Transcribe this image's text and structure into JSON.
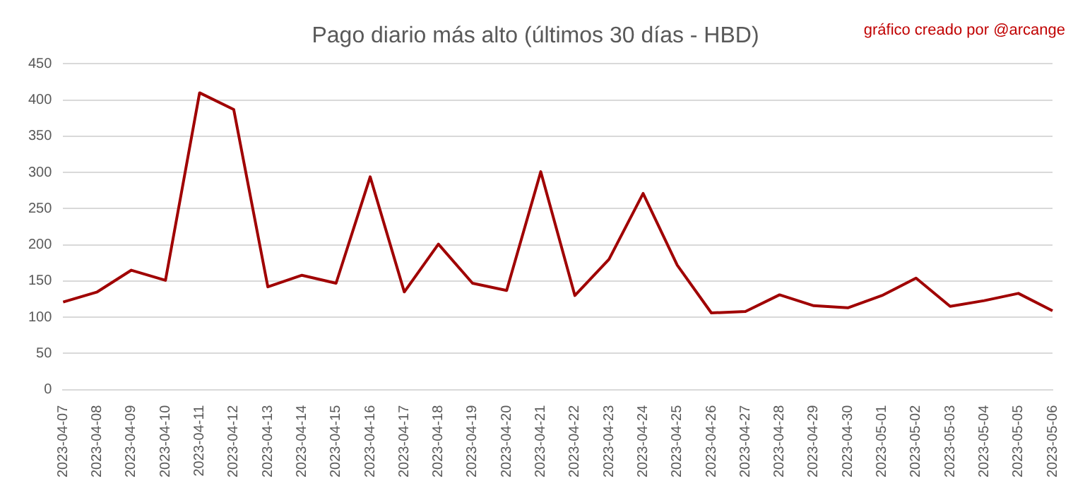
{
  "chart_data": {
    "type": "line",
    "title": "Pago diario más alto (últimos 30 días - HBD)",
    "annotations": [
      "gráfico creado por @arcange"
    ],
    "categories": [
      "2023-04-07",
      "2023-04-08",
      "2023-04-09",
      "2023-04-10",
      "2023-04-11",
      "2023-04-12",
      "2023-04-13",
      "2023-04-14",
      "2023-04-15",
      "2023-04-16",
      "2023-04-17",
      "2023-04-18",
      "2023-04-19",
      "2023-04-20",
      "2023-04-21",
      "2023-04-22",
      "2023-04-23",
      "2023-04-24",
      "2023-04-25",
      "2023-04-26",
      "2023-04-27",
      "2023-04-28",
      "2023-04-29",
      "2023-04-30",
      "2023-05-01",
      "2023-05-02",
      "2023-05-03",
      "2023-05-04",
      "2023-05-05",
      "2023-05-06"
    ],
    "series": [
      {
        "color": "#a00000",
        "values": [
          121,
          135,
          165,
          151,
          410,
          387,
          142,
          158,
          147,
          294,
          135,
          201,
          147,
          137,
          301,
          130,
          180,
          271,
          172,
          106,
          108,
          131,
          116,
          113,
          130,
          154,
          115,
          123,
          133,
          109
        ]
      }
    ],
    "ylim": [
      0,
      450
    ],
    "yticks": [
      0,
      50,
      100,
      150,
      200,
      250,
      300,
      350,
      400,
      450
    ],
    "grid": "y",
    "legend": false,
    "marker": "none",
    "line_style": "solid"
  }
}
